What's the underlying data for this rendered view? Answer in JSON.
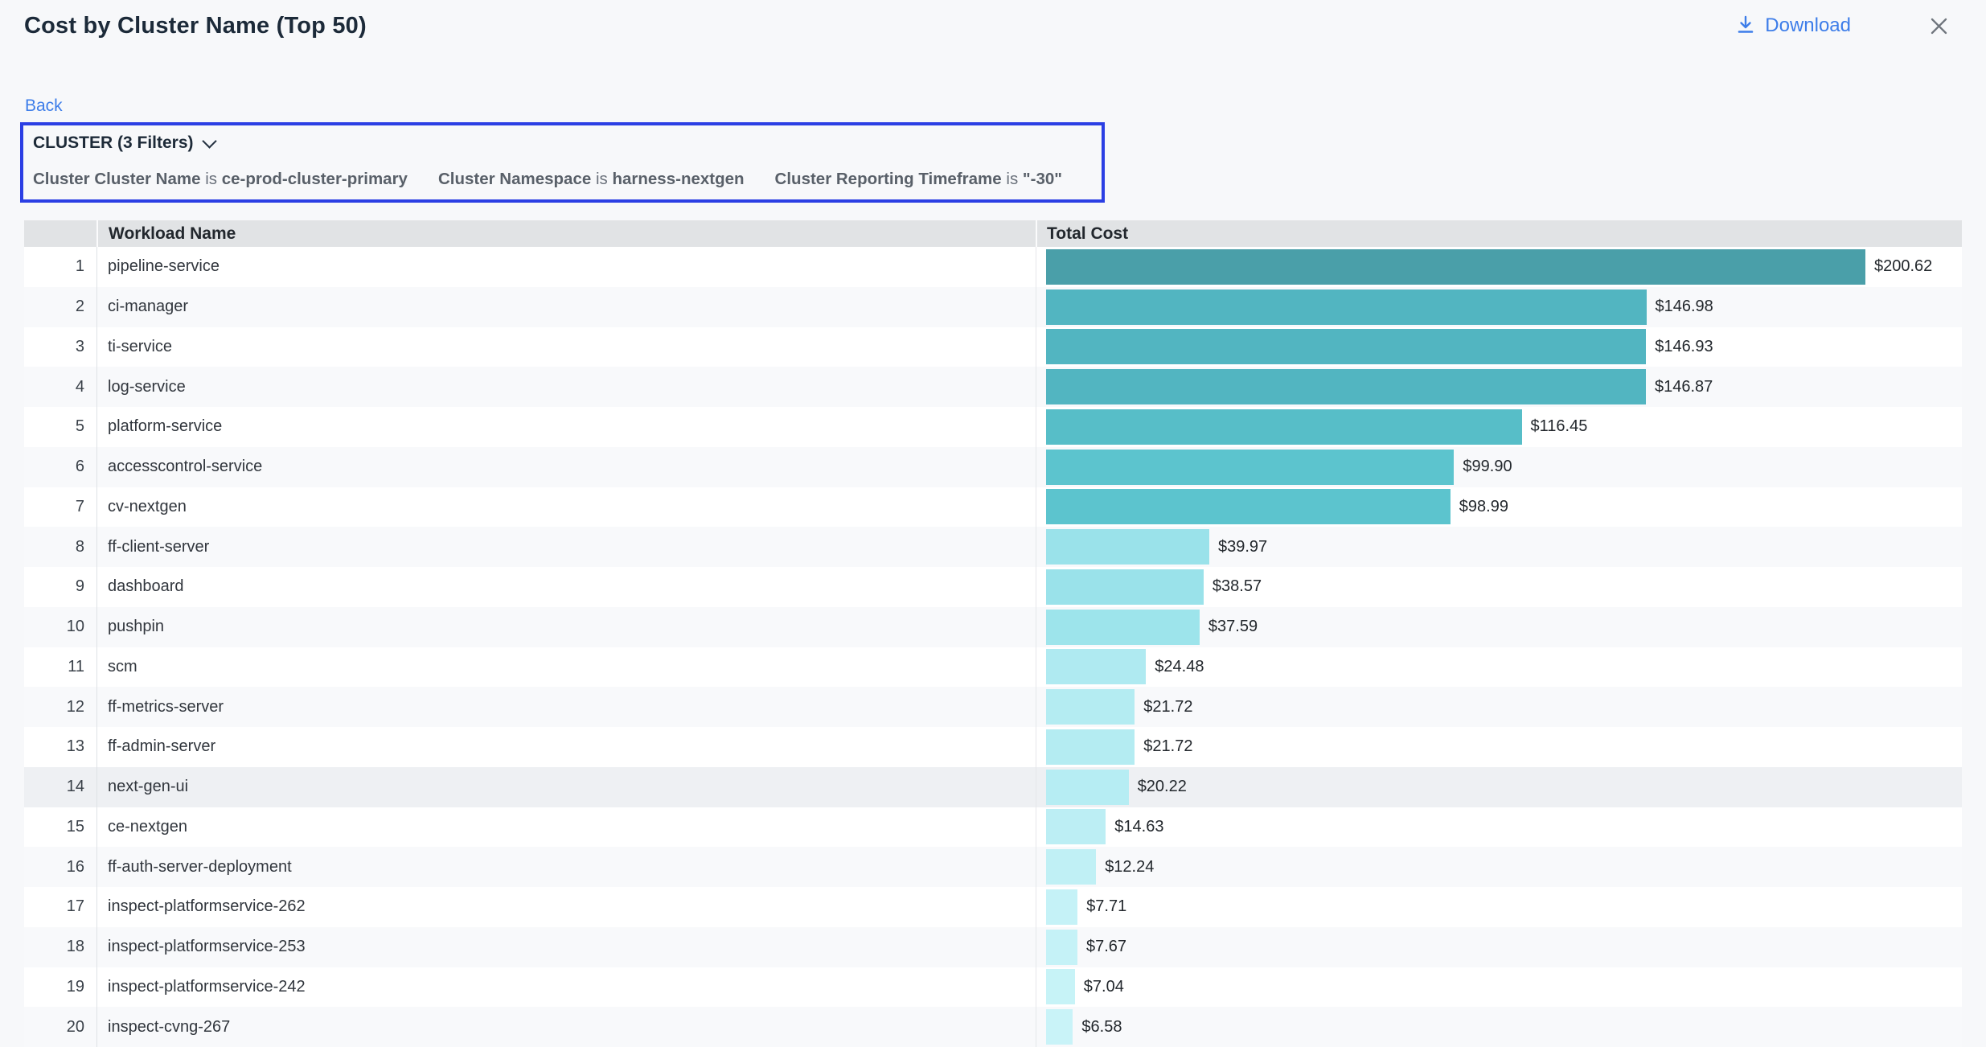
{
  "header": {
    "title": "Cost by Cluster Name (Top 50)",
    "download_label": "Download"
  },
  "nav": {
    "back_label": "Back"
  },
  "filter_panel": {
    "summary": "CLUSTER (3 Filters)",
    "border_color": "#2b3fe4",
    "filters": [
      {
        "field": "Cluster Cluster Name",
        "op": "is",
        "value": "ce-prod-cluster-primary"
      },
      {
        "field": "Cluster Namespace",
        "op": "is",
        "value": "harness-nextgen"
      },
      {
        "field": "Cluster Reporting Timeframe",
        "op": "is",
        "value": "\"-30\""
      }
    ]
  },
  "table": {
    "col_workload": "Workload Name",
    "col_cost": "Total Cost"
  },
  "colors": {
    "link_blue": "#3d7de9",
    "close_gray": "#6f757d",
    "header_bg": "#e1e3e5"
  },
  "rows": [
    {
      "rank": "1",
      "name": "pipeline-service",
      "value": 200.62,
      "label": "$200.62",
      "color": "#4a9fa9",
      "highlighted": false
    },
    {
      "rank": "2",
      "name": "ci-manager",
      "value": 146.98,
      "label": "$146.98",
      "color": "#52b5c1",
      "highlighted": false
    },
    {
      "rank": "3",
      "name": "ti-service",
      "value": 146.93,
      "label": "$146.93",
      "color": "#52b5c1",
      "highlighted": false
    },
    {
      "rank": "4",
      "name": "log-service",
      "value": 146.87,
      "label": "$146.87",
      "color": "#52b5c1",
      "highlighted": false
    },
    {
      "rank": "5",
      "name": "platform-service",
      "value": 116.45,
      "label": "$116.45",
      "color": "#57bec8",
      "highlighted": false
    },
    {
      "rank": "6",
      "name": "accesscontrol-service",
      "value": 99.9,
      "label": "$99.90",
      "color": "#5cc4ce",
      "highlighted": false
    },
    {
      "rank": "7",
      "name": "cv-nextgen",
      "value": 98.99,
      "label": "$98.99",
      "color": "#5cc4ce",
      "highlighted": false
    },
    {
      "rank": "8",
      "name": "ff-client-server",
      "value": 39.97,
      "label": "$39.97",
      "color": "#9ae2ea",
      "highlighted": false
    },
    {
      "rank": "9",
      "name": "dashboard",
      "value": 38.57,
      "label": "$38.57",
      "color": "#9ae2ea",
      "highlighted": false
    },
    {
      "rank": "10",
      "name": "pushpin",
      "value": 37.59,
      "label": "$37.59",
      "color": "#9de4eb",
      "highlighted": false
    },
    {
      "rank": "11",
      "name": "scm",
      "value": 24.48,
      "label": "$24.48",
      "color": "#afeaf1",
      "highlighted": false
    },
    {
      "rank": "12",
      "name": "ff-metrics-server",
      "value": 21.72,
      "label": "$21.72",
      "color": "#b4ecf2",
      "highlighted": false
    },
    {
      "rank": "13",
      "name": "ff-admin-server",
      "value": 21.72,
      "label": "$21.72",
      "color": "#b4ecf2",
      "highlighted": false
    },
    {
      "rank": "14",
      "name": "next-gen-ui",
      "value": 20.22,
      "label": "$20.22",
      "color": "#b6edf3",
      "highlighted": true
    },
    {
      "rank": "15",
      "name": "ce-nextgen",
      "value": 14.63,
      "label": "$14.63",
      "color": "#bceef4",
      "highlighted": false
    },
    {
      "rank": "16",
      "name": "ff-auth-server-deployment",
      "value": 12.24,
      "label": "$12.24",
      "color": "#c0f0f5",
      "highlighted": false
    },
    {
      "rank": "17",
      "name": "inspect-platformservice-262",
      "value": 7.71,
      "label": "$7.71",
      "color": "#c5f2f7",
      "highlighted": false
    },
    {
      "rank": "18",
      "name": "inspect-platformservice-253",
      "value": 7.67,
      "label": "$7.67",
      "color": "#c5f2f7",
      "highlighted": false
    },
    {
      "rank": "19",
      "name": "inspect-platformservice-242",
      "value": 7.04,
      "label": "$7.04",
      "color": "#c7f3f7",
      "highlighted": false
    },
    {
      "rank": "20",
      "name": "inspect-cvng-267",
      "value": 6.58,
      "label": "$6.58",
      "color": "#c9f3f8",
      "highlighted": false
    }
  ],
  "chart_data": {
    "type": "bar",
    "orientation": "horizontal",
    "title": "Cost by Cluster Name (Top 50)",
    "categories": [
      "pipeline-service",
      "ci-manager",
      "ti-service",
      "log-service",
      "platform-service",
      "accesscontrol-service",
      "cv-nextgen",
      "ff-client-server",
      "dashboard",
      "pushpin",
      "scm",
      "ff-metrics-server",
      "ff-admin-server",
      "next-gen-ui",
      "ce-nextgen",
      "ff-auth-server-deployment",
      "inspect-platformservice-262",
      "inspect-platformservice-253",
      "inspect-platformservice-242",
      "inspect-cvng-267"
    ],
    "values": [
      200.62,
      146.98,
      146.93,
      146.87,
      116.45,
      99.9,
      98.99,
      39.97,
      38.57,
      37.59,
      24.48,
      21.72,
      21.72,
      20.22,
      14.63,
      12.24,
      7.71,
      7.67,
      7.04,
      6.58
    ],
    "value_labels": [
      "$200.62",
      "$146.98",
      "$146.93",
      "$146.87",
      "$116.45",
      "$99.90",
      "$98.99",
      "$39.97",
      "$38.57",
      "$37.59",
      "$24.48",
      "$21.72",
      "$21.72",
      "$20.22",
      "$14.63",
      "$12.24",
      "$7.71",
      "$7.67",
      "$7.04",
      "$6.58"
    ],
    "xlabel": "Total Cost",
    "ylabel": "Workload Name",
    "xlim": [
      0,
      224
    ],
    "grid": false,
    "legend": "none"
  }
}
